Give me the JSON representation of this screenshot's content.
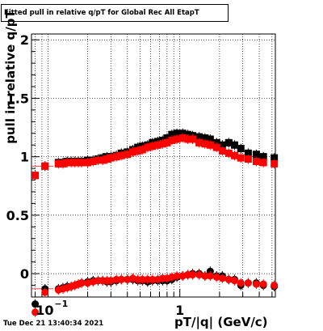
{
  "title": "Fitted pull in relative q/pT for Global Rec All EtapT",
  "xlabel": "pT/|q| (GeV/c)",
  "ylabel": "pull in relative q/pT",
  "timestamp": "Tue Dec 21 13:40:34 2021",
  "chart_data": {
    "type": "scatter",
    "x_scale": "log",
    "xlim": [
      0.075,
      5.3
    ],
    "ylim": [
      -0.2,
      2.05
    ],
    "grid": true,
    "y_ticks": [
      {
        "value": 0,
        "label": "0"
      },
      {
        "value": 0.5,
        "label": "0.5"
      },
      {
        "value": 1,
        "label": "1"
      },
      {
        "value": 1.5,
        "label": "1.5"
      },
      {
        "value": 2,
        "label": "2"
      }
    ],
    "x_major_ticks": [
      {
        "value": 0.1,
        "base": "10",
        "exp": "−1"
      },
      {
        "value": 1,
        "label": "1"
      }
    ],
    "x": [
      0.08,
      0.095,
      0.12,
      0.13,
      0.14,
      0.15,
      0.16,
      0.17,
      0.18,
      0.2,
      0.22,
      0.24,
      0.26,
      0.28,
      0.3,
      0.33,
      0.36,
      0.4,
      0.44,
      0.48,
      0.52,
      0.57,
      0.62,
      0.68,
      0.74,
      0.8,
      0.87,
      0.95,
      1.05,
      1.15,
      1.25,
      1.4,
      1.55,
      1.7,
      1.9,
      2.1,
      2.35,
      2.6,
      2.9,
      3.3,
      3.8,
      4.3,
      5.2
    ],
    "series": [
      {
        "color": "#000000",
        "marker": "square",
        "values": [
          0.84,
          0.92,
          0.95,
          0.95,
          0.96,
          0.96,
          0.96,
          0.96,
          0.96,
          0.97,
          0.97,
          0.98,
          0.99,
          1.0,
          1.0,
          1.01,
          1.03,
          1.04,
          1.06,
          1.08,
          1.09,
          1.1,
          1.12,
          1.13,
          1.14,
          1.16,
          1.19,
          1.2,
          1.2,
          1.19,
          1.18,
          1.17,
          1.16,
          1.15,
          1.12,
          1.1,
          1.12,
          1.1,
          1.07,
          1.03,
          1.02,
          1.0,
          0.99
        ]
      },
      {
        "color": "#ff0000",
        "marker": "square",
        "values": [
          0.84,
          0.92,
          0.94,
          0.94,
          0.95,
          0.95,
          0.95,
          0.95,
          0.95,
          0.95,
          0.96,
          0.97,
          0.97,
          0.98,
          0.99,
          1.0,
          1.01,
          1.02,
          1.04,
          1.05,
          1.06,
          1.08,
          1.09,
          1.1,
          1.11,
          1.12,
          1.14,
          1.15,
          1.16,
          1.15,
          1.15,
          1.12,
          1.11,
          1.1,
          1.08,
          1.05,
          1.03,
          1.01,
          0.99,
          0.98,
          0.96,
          0.95,
          0.94
        ]
      },
      {
        "color": "#000000",
        "marker": "circle",
        "values": [
          -0.26,
          -0.13,
          -0.13,
          -0.12,
          -0.11,
          -0.11,
          -0.1,
          -0.09,
          -0.08,
          -0.07,
          -0.06,
          -0.06,
          -0.06,
          -0.07,
          -0.07,
          -0.06,
          -0.05,
          -0.05,
          -0.05,
          -0.06,
          -0.06,
          -0.07,
          -0.06,
          -0.06,
          -0.06,
          -0.06,
          -0.05,
          -0.03,
          -0.02,
          -0.01,
          0.0,
          0.0,
          -0.02,
          0.02,
          -0.02,
          -0.02,
          -0.05,
          -0.05,
          -0.1,
          -0.08,
          -0.08,
          -0.1,
          -0.11
        ]
      },
      {
        "color": "#ff0000",
        "marker": "circle",
        "values": [
          -0.33,
          -0.16,
          -0.14,
          -0.13,
          -0.12,
          -0.11,
          -0.1,
          -0.09,
          -0.08,
          -0.08,
          -0.07,
          -0.06,
          -0.06,
          -0.06,
          -0.06,
          -0.05,
          -0.05,
          -0.05,
          -0.04,
          -0.05,
          -0.05,
          -0.05,
          -0.05,
          -0.05,
          -0.04,
          -0.04,
          -0.03,
          -0.02,
          -0.02,
          -0.01,
          -0.01,
          -0.01,
          -0.02,
          -0.02,
          -0.03,
          -0.04,
          -0.05,
          -0.06,
          -0.08,
          -0.08,
          -0.09,
          -0.09,
          -0.1
        ]
      }
    ]
  }
}
